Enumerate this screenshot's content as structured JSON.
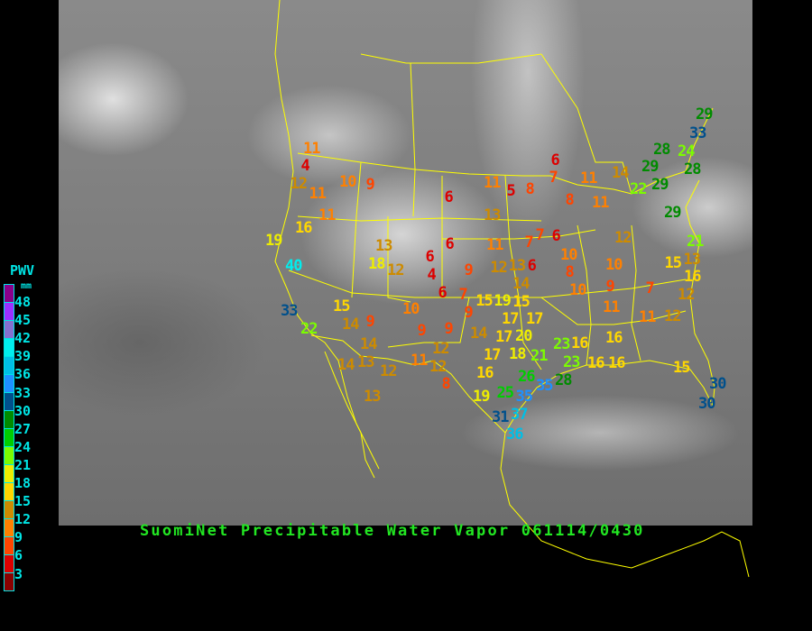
{
  "title": "SuomiNet Precipitable Water Vapor 061114/0430",
  "legend": {
    "title": "PWV",
    "unit": "mm",
    "labels": [
      "48",
      "45",
      "42",
      "39",
      "36",
      "33",
      "30",
      "27",
      "24",
      "21",
      "18",
      "15",
      "12",
      "9",
      "6",
      "3"
    ],
    "colors": [
      "#8b008b",
      "#9b30ff",
      "#8470d0",
      "#00eeee",
      "#00bfe6",
      "#1e90ff",
      "#00508c",
      "#008b00",
      "#00cd00",
      "#7cfc00",
      "#eeee00",
      "#ffd700",
      "#cd8b00",
      "#ff8000",
      "#ff4500",
      "#dd0000",
      "#8b0000"
    ]
  },
  "map": {
    "border_color": "#ffff00",
    "background": "satellite-infrared"
  },
  "stations": [
    {
      "value": "11"
    },
    {
      "value": "4"
    },
    {
      "value": "12"
    },
    {
      "value": "11"
    },
    {
      "value": "10"
    },
    {
      "value": "9"
    },
    {
      "value": "11"
    },
    {
      "value": "16"
    },
    {
      "value": "19"
    },
    {
      "value": "40"
    },
    {
      "value": "13"
    },
    {
      "value": "18"
    },
    {
      "value": "12"
    },
    {
      "value": "6"
    },
    {
      "value": "4"
    },
    {
      "value": "6"
    },
    {
      "value": "6"
    },
    {
      "value": "6"
    },
    {
      "value": "11"
    },
    {
      "value": "5"
    },
    {
      "value": "8"
    },
    {
      "value": "13"
    },
    {
      "value": "11"
    },
    {
      "value": "7"
    },
    {
      "value": "7"
    },
    {
      "value": "6"
    },
    {
      "value": "6"
    },
    {
      "value": "7"
    },
    {
      "value": "8"
    },
    {
      "value": "11"
    },
    {
      "value": "11"
    },
    {
      "value": "14"
    },
    {
      "value": "29"
    },
    {
      "value": "33"
    },
    {
      "value": "28"
    },
    {
      "value": "24"
    },
    {
      "value": "28"
    },
    {
      "value": "29"
    },
    {
      "value": "29"
    },
    {
      "value": "22"
    },
    {
      "value": "29"
    },
    {
      "value": "21"
    },
    {
      "value": "12"
    },
    {
      "value": "10"
    },
    {
      "value": "8"
    },
    {
      "value": "10"
    },
    {
      "value": "9"
    },
    {
      "value": "10"
    },
    {
      "value": "15"
    },
    {
      "value": "13"
    },
    {
      "value": "16"
    },
    {
      "value": "12"
    },
    {
      "value": "7"
    },
    {
      "value": "11"
    },
    {
      "value": "11"
    },
    {
      "value": "12"
    },
    {
      "value": "6"
    },
    {
      "value": "12"
    },
    {
      "value": "13"
    },
    {
      "value": "14"
    },
    {
      "value": "15"
    },
    {
      "value": "19"
    },
    {
      "value": "9"
    },
    {
      "value": "15"
    },
    {
      "value": "7"
    },
    {
      "value": "9"
    },
    {
      "value": "10"
    },
    {
      "value": "15"
    },
    {
      "value": "14"
    },
    {
      "value": "9"
    },
    {
      "value": "14"
    },
    {
      "value": "9"
    },
    {
      "value": "9"
    },
    {
      "value": "14"
    },
    {
      "value": "17"
    },
    {
      "value": "20"
    },
    {
      "value": "17"
    },
    {
      "value": "17"
    },
    {
      "value": "12"
    },
    {
      "value": "17"
    },
    {
      "value": "18"
    },
    {
      "value": "21"
    },
    {
      "value": "16"
    },
    {
      "value": "16"
    },
    {
      "value": "23"
    },
    {
      "value": "23"
    },
    {
      "value": "28"
    },
    {
      "value": "26"
    },
    {
      "value": "35"
    },
    {
      "value": "16"
    },
    {
      "value": "16"
    },
    {
      "value": "15"
    },
    {
      "value": "30"
    },
    {
      "value": "30"
    },
    {
      "value": "12"
    },
    {
      "value": "16"
    },
    {
      "value": "8"
    },
    {
      "value": "11"
    },
    {
      "value": "12"
    },
    {
      "value": "14"
    },
    {
      "value": "13"
    },
    {
      "value": "13"
    },
    {
      "value": "19"
    },
    {
      "value": "25"
    },
    {
      "value": "35"
    },
    {
      "value": "31"
    },
    {
      "value": "37"
    },
    {
      "value": "36"
    },
    {
      "value": "33"
    },
    {
      "value": "22"
    }
  ]
}
